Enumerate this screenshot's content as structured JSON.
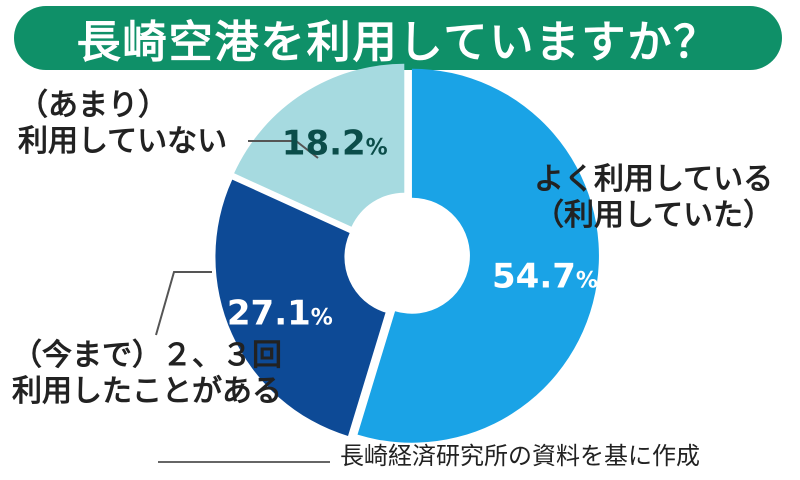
{
  "title": "長崎空港を利用していますか？",
  "source": "長崎経済研究所の資料を基に作成",
  "chart_data": {
    "type": "pie",
    "donut": true,
    "title": "長崎空港を利用していますか？",
    "slices": [
      {
        "label_lines": [
          "よく利用している",
          "（利用していた）"
        ],
        "value": 54.7,
        "display": "54.7",
        "color": "#1aa3e6",
        "text_color": "#ffffff"
      },
      {
        "label_lines": [
          "（今まで）２、３回",
          "利用したことがある"
        ],
        "value": 27.1,
        "display": "27.1",
        "color": "#0d4a96",
        "text_color": "#ffffff"
      },
      {
        "label_lines": [
          "（あまり）",
          "利用していない"
        ],
        "value": 18.2,
        "display": "18.2",
        "color": "#a6dae0",
        "text_color": "#0b4d4a"
      }
    ],
    "unit": "%"
  }
}
